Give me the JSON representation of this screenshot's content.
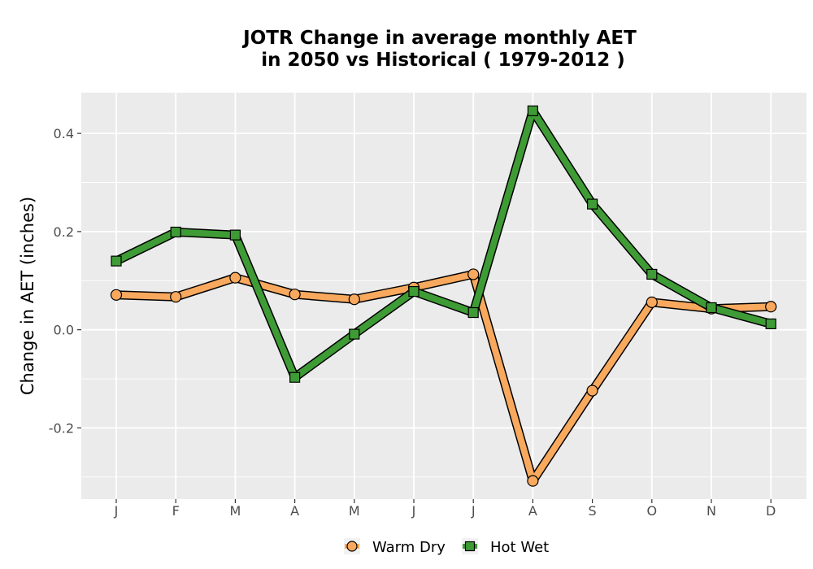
{
  "chart_data": {
    "type": "line",
    "title": "JOTR  Change in average monthly AET",
    "subtitle": "in 2050 vs Historical ( 1979-2012 )",
    "xlabel": "",
    "ylabel": "Change in AET (inches)",
    "categories": [
      "J",
      "F",
      "M",
      "A",
      "M",
      "J",
      "J",
      "A",
      "S",
      "O",
      "N",
      "D"
    ],
    "y_ticks": [
      -0.2,
      0.0,
      0.2,
      0.4
    ],
    "y_tick_labels": [
      "-0.2",
      "0.0",
      "0.2",
      "0.4"
    ],
    "ylim": [
      -0.345,
      0.483
    ],
    "grid": true,
    "legend_position": "bottom",
    "series": [
      {
        "name": "Warm Dry",
        "color": "#F8A95E",
        "marker": "circle",
        "values": [
          0.071,
          0.067,
          0.106,
          0.072,
          0.062,
          0.086,
          0.113,
          -0.308,
          -0.124,
          0.056,
          0.043,
          0.047
        ]
      },
      {
        "name": "Hot Wet",
        "color": "#3E9B35",
        "marker": "square",
        "values": [
          0.14,
          0.199,
          0.193,
          -0.097,
          -0.009,
          0.078,
          0.035,
          0.446,
          0.256,
          0.113,
          0.045,
          0.012
        ]
      }
    ]
  }
}
